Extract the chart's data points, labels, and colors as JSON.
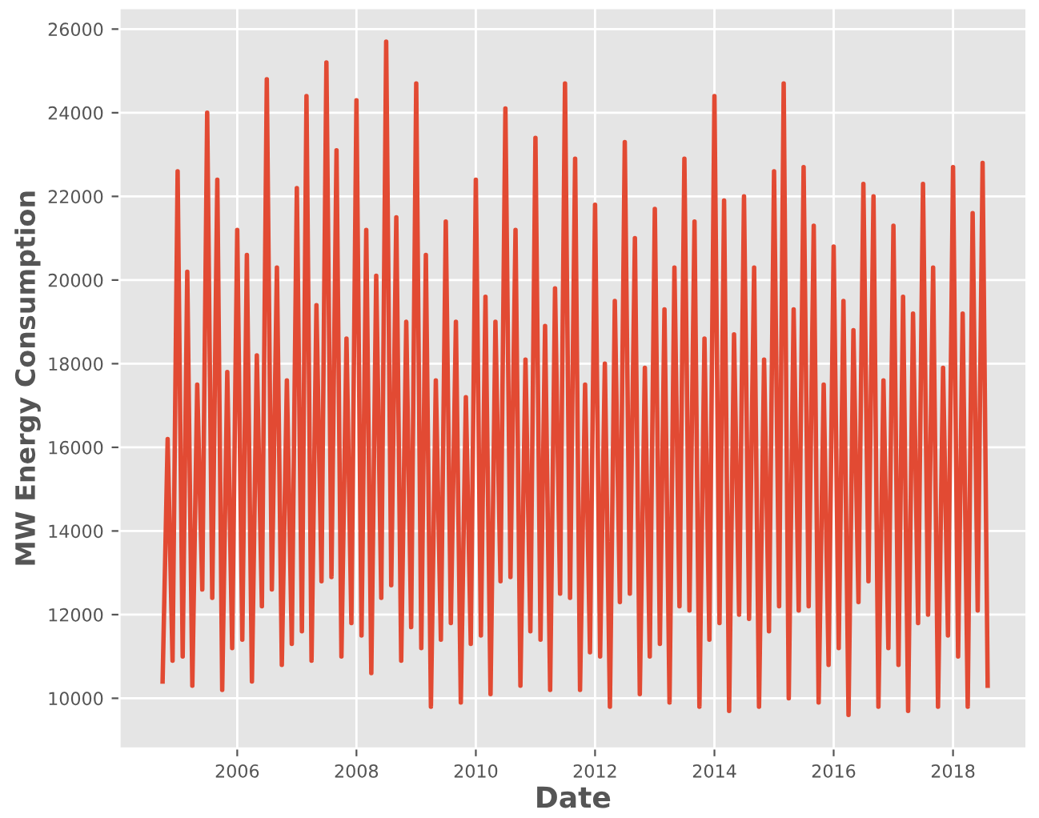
{
  "chart_data": {
    "type": "line",
    "xlabel": "Date",
    "ylabel": "MW Energy Consumption",
    "x": [
      "2004-10",
      "2004-11",
      "2004-12",
      "2005-01",
      "2005-02",
      "2005-03",
      "2005-04",
      "2005-05",
      "2005-06",
      "2005-07",
      "2005-08",
      "2005-09",
      "2005-10",
      "2005-11",
      "2005-12",
      "2006-01",
      "2006-02",
      "2006-03",
      "2006-04",
      "2006-05",
      "2006-06",
      "2006-07",
      "2006-08",
      "2006-09",
      "2006-10",
      "2006-11",
      "2006-12",
      "2007-01",
      "2007-02",
      "2007-03",
      "2007-04",
      "2007-05",
      "2007-06",
      "2007-07",
      "2007-08",
      "2007-09",
      "2007-10",
      "2007-11",
      "2007-12",
      "2008-01",
      "2008-02",
      "2008-03",
      "2008-04",
      "2008-05",
      "2008-06",
      "2008-07",
      "2008-08",
      "2008-09",
      "2008-10",
      "2008-11",
      "2008-12",
      "2009-01",
      "2009-02",
      "2009-03",
      "2009-04",
      "2009-05",
      "2009-06",
      "2009-07",
      "2009-08",
      "2009-09",
      "2009-10",
      "2009-11",
      "2009-12",
      "2010-01",
      "2010-02",
      "2010-03",
      "2010-04",
      "2010-05",
      "2010-06",
      "2010-07",
      "2010-08",
      "2010-09",
      "2010-10",
      "2010-11",
      "2010-12",
      "2011-01",
      "2011-02",
      "2011-03",
      "2011-04",
      "2011-05",
      "2011-06",
      "2011-07",
      "2011-08",
      "2011-09",
      "2011-10",
      "2011-11",
      "2011-12",
      "2012-01",
      "2012-02",
      "2012-03",
      "2012-04",
      "2012-05",
      "2012-06",
      "2012-07",
      "2012-08",
      "2012-09",
      "2012-10",
      "2012-11",
      "2012-12",
      "2013-01",
      "2013-02",
      "2013-03",
      "2013-04",
      "2013-05",
      "2013-06",
      "2013-07",
      "2013-08",
      "2013-09",
      "2013-10",
      "2013-11",
      "2013-12",
      "2014-01",
      "2014-02",
      "2014-03",
      "2014-04",
      "2014-05",
      "2014-06",
      "2014-07",
      "2014-08",
      "2014-09",
      "2014-10",
      "2014-11",
      "2014-12",
      "2015-01",
      "2015-02",
      "2015-03",
      "2015-04",
      "2015-05",
      "2015-06",
      "2015-07",
      "2015-08",
      "2015-09",
      "2015-10",
      "2015-11",
      "2015-12",
      "2016-01",
      "2016-02",
      "2016-03",
      "2016-04",
      "2016-05",
      "2016-06",
      "2016-07",
      "2016-08",
      "2016-09",
      "2016-10",
      "2016-11",
      "2016-12",
      "2017-01",
      "2017-02",
      "2017-03",
      "2017-04",
      "2017-05",
      "2017-06",
      "2017-07",
      "2017-08",
      "2017-09",
      "2017-10",
      "2017-11",
      "2017-12",
      "2018-01",
      "2018-02",
      "2018-03",
      "2018-04",
      "2018-05",
      "2018-06",
      "2018-07",
      "2018-08"
    ],
    "series": [
      {
        "color": "#e24a33",
        "values": [
          10400,
          16200,
          10900,
          22600,
          11000,
          20200,
          10300,
          17500,
          12600,
          24000,
          12400,
          22400,
          10200,
          17800,
          11200,
          21200,
          11400,
          20600,
          10400,
          18200,
          12200,
          24800,
          12600,
          20300,
          10800,
          17600,
          11300,
          22200,
          11600,
          24400,
          10900,
          19400,
          12800,
          25200,
          12900,
          23100,
          11000,
          18600,
          11800,
          24300,
          11500,
          21200,
          10600,
          20100,
          12400,
          25700,
          12700,
          21500,
          10900,
          19000,
          11700,
          24700,
          11200,
          20600,
          9800,
          17600,
          11400,
          21400,
          11800,
          19000,
          9900,
          17200,
          11300,
          22400,
          11500,
          19600,
          10100,
          19000,
          12800,
          24100,
          12900,
          21200,
          10300,
          18100,
          11600,
          23400,
          11400,
          18900,
          10200,
          19800,
          12500,
          24700,
          12400,
          22900,
          10200,
          17500,
          11100,
          21800,
          11000,
          18000,
          9800,
          19500,
          12300,
          23300,
          12500,
          21000,
          10100,
          17900,
          11000,
          21700,
          11300,
          19300,
          9900,
          20300,
          12200,
          22900,
          12100,
          21400,
          9800,
          18600,
          11400,
          24400,
          11800,
          21900,
          9700,
          18700,
          12000,
          22000,
          11900,
          20300,
          9800,
          18100,
          11600,
          22600,
          12200,
          24700,
          10000,
          19300,
          12100,
          22700,
          12200,
          21300,
          9900,
          17500,
          10800,
          20800,
          11200,
          19500,
          9600,
          18800,
          12300,
          22300,
          12800,
          22000,
          9800,
          17600,
          11200,
          21300,
          10800,
          19600,
          9700,
          19200,
          11800,
          22300,
          12000,
          20300,
          9800,
          17900,
          11500,
          22700,
          11000,
          19200,
          9800,
          21600,
          12100,
          22800,
          10300
        ]
      }
    ],
    "xlim": [
      "2004-01-11",
      "2019-03-27"
    ],
    "xticks": [
      "2006",
      "2008",
      "2010",
      "2012",
      "2014",
      "2016",
      "2018"
    ],
    "ylim": [
      8800,
      26500
    ],
    "yticks": [
      10000,
      12000,
      14000,
      16000,
      18000,
      20000,
      22000,
      24000,
      26000
    ],
    "grid": true,
    "marker": "none",
    "line_style": "solid"
  }
}
